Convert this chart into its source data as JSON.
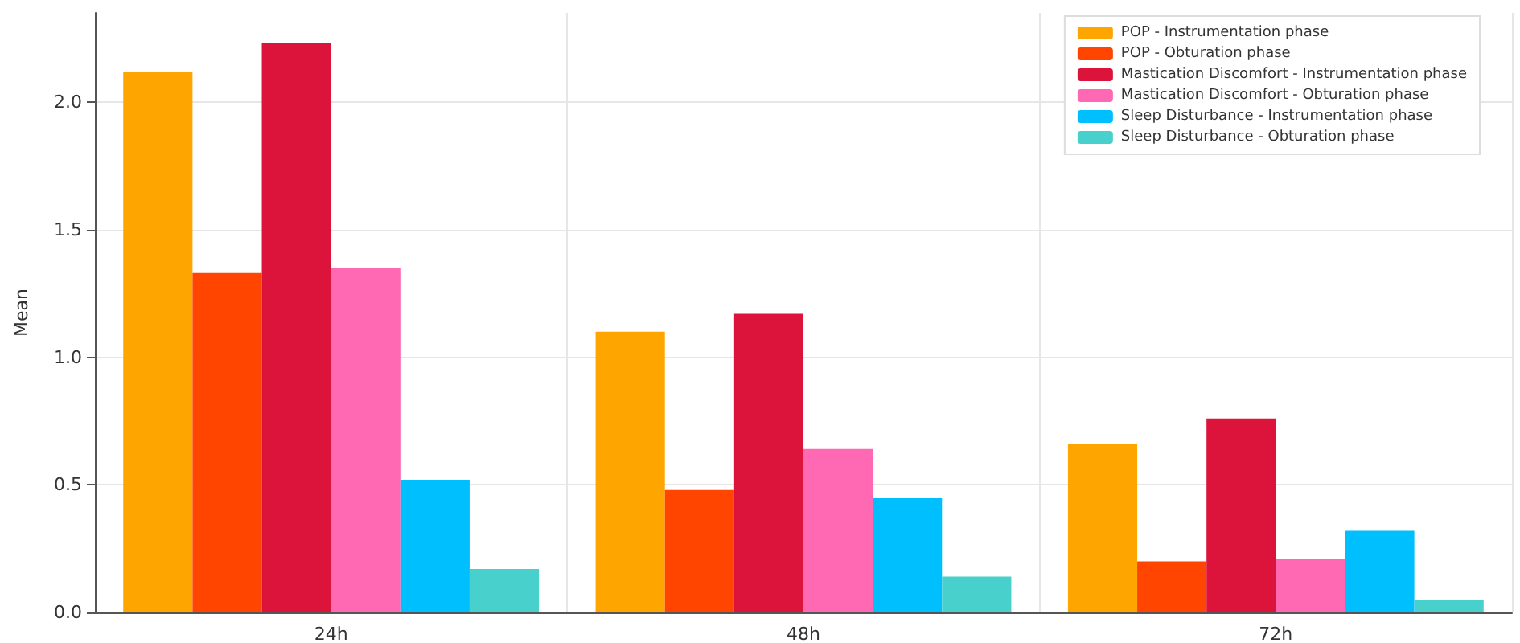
{
  "chart_data": {
    "type": "bar",
    "ylabel": "Mean",
    "categories": [
      "24h",
      "48h",
      "72h"
    ],
    "series": [
      {
        "name": "POP - Instrumentation phase",
        "color": "#ffa500",
        "values": [
          2.12,
          1.1,
          0.66
        ]
      },
      {
        "name": "POP - Obturation phase",
        "color": "#ff4500",
        "values": [
          1.33,
          0.48,
          0.2
        ]
      },
      {
        "name": "Mastication Discomfort - Instrumentation phase",
        "color": "#dc143c",
        "values": [
          2.23,
          1.17,
          0.76
        ]
      },
      {
        "name": "Mastication Discomfort - Obturation phase",
        "color": "#ff69b4",
        "values": [
          1.35,
          0.64,
          0.21
        ]
      },
      {
        "name": "Sleep Disturbance - Instrumentation phase",
        "color": "#00bfff",
        "values": [
          0.52,
          0.45,
          0.32
        ]
      },
      {
        "name": "Sleep Disturbance - Obturation phase",
        "color": "#48d1cc",
        "values": [
          0.17,
          0.14,
          0.05
        ]
      }
    ],
    "ylim": [
      0,
      2.35
    ],
    "yticks": [
      {
        "value": 0,
        "label": "0.0"
      },
      0.5,
      {
        "value": 1,
        "label": "1.0"
      },
      1.5,
      {
        "value": 2,
        "label": "2.0"
      }
    ],
    "grid": true,
    "legend": "top right"
  }
}
